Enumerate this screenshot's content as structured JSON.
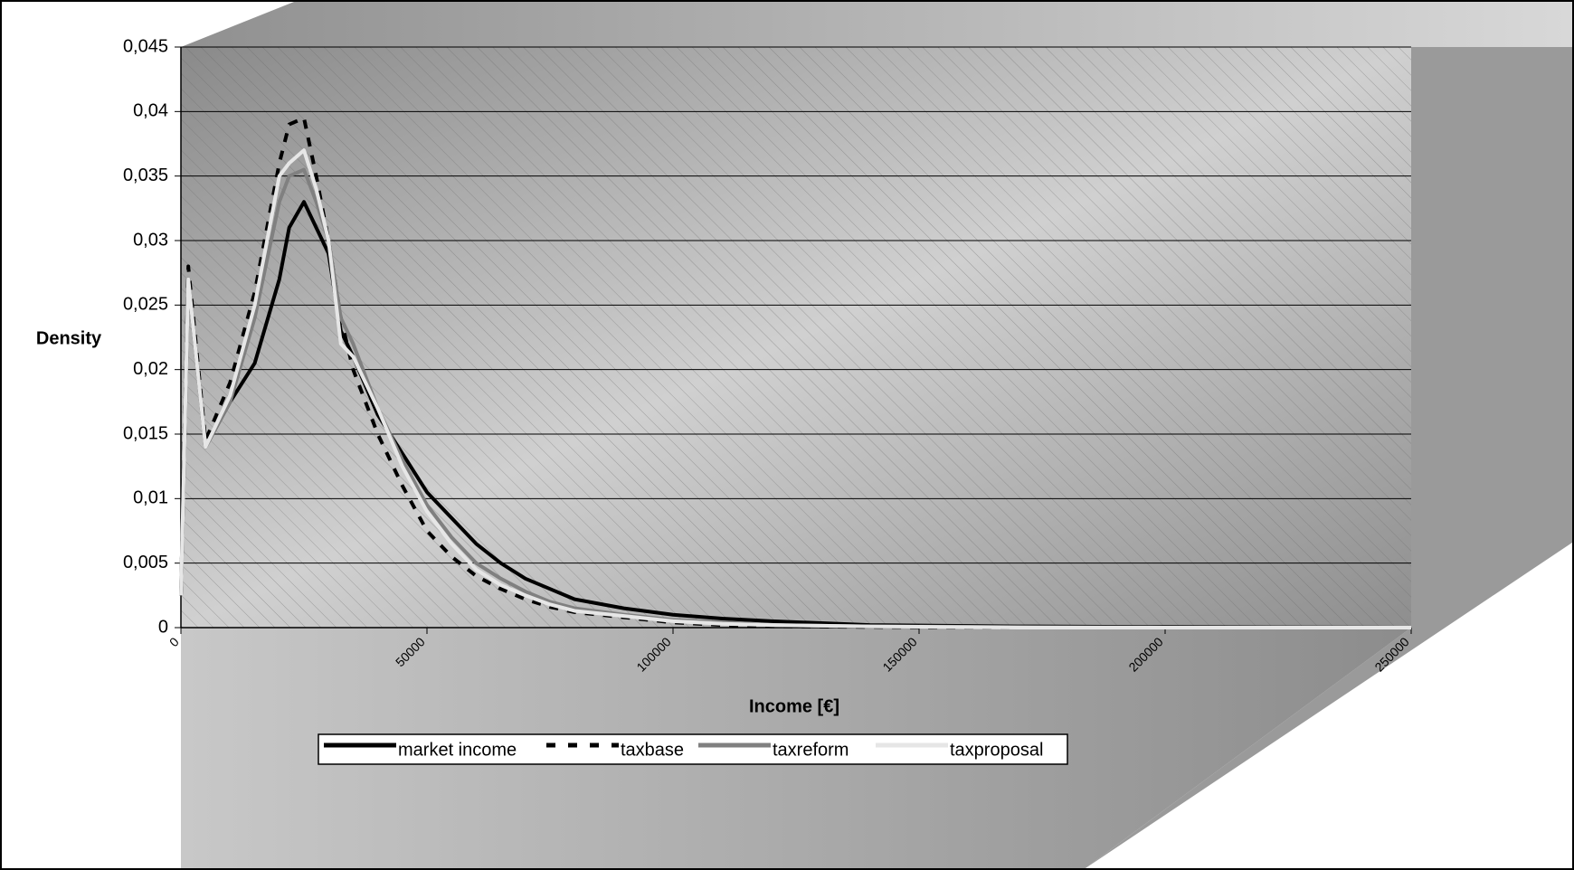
{
  "chart_data": {
    "type": "line",
    "y_label": "Density",
    "x_label": "Income [€]",
    "x": [
      0,
      1500,
      5000,
      10000,
      15000,
      20000,
      22000,
      25000,
      27500,
      30000,
      32500,
      35000,
      40000,
      45000,
      50000,
      55000,
      60000,
      65000,
      70000,
      75000,
      80000,
      90000,
      100000,
      110000,
      120000,
      140000,
      170000,
      200000,
      250000
    ],
    "series": [
      {
        "name": "market income",
        "color": "#000000",
        "dash": false,
        "values": [
          0.0025,
          0.027,
          0.014,
          0.0175,
          0.0205,
          0.027,
          0.031,
          0.033,
          0.031,
          0.029,
          0.023,
          0.021,
          0.0165,
          0.0135,
          0.0105,
          0.0085,
          0.0065,
          0.005,
          0.0038,
          0.003,
          0.0022,
          0.0015,
          0.001,
          0.0007,
          0.0005,
          0.0002,
          0.0001,
          5e-05,
          0
        ]
      },
      {
        "name": "taxbase",
        "color": "#000000",
        "dash": true,
        "values": [
          0.0025,
          0.028,
          0.0145,
          0.019,
          0.026,
          0.036,
          0.039,
          0.0395,
          0.035,
          0.03,
          0.024,
          0.02,
          0.015,
          0.011,
          0.0075,
          0.0055,
          0.004,
          0.003,
          0.0022,
          0.0016,
          0.0012,
          0.0008,
          0.0004,
          0.0002,
          0.0001,
          5e-05,
          0,
          0,
          0
        ]
      },
      {
        "name": "taxreform",
        "color": "#808080",
        "dash": false,
        "values": [
          0.0025,
          0.027,
          0.014,
          0.0175,
          0.024,
          0.033,
          0.035,
          0.0355,
          0.033,
          0.03,
          0.024,
          0.022,
          0.017,
          0.013,
          0.0095,
          0.007,
          0.005,
          0.0038,
          0.0028,
          0.002,
          0.0015,
          0.001,
          0.0006,
          0.0004,
          0.0002,
          0.0001,
          5e-05,
          0,
          0
        ]
      },
      {
        "name": "taxproposal",
        "color": "#e6e6e6",
        "dash": false,
        "values": [
          0.0025,
          0.027,
          0.014,
          0.018,
          0.025,
          0.035,
          0.036,
          0.037,
          0.034,
          0.03,
          0.022,
          0.021,
          0.017,
          0.0125,
          0.009,
          0.0065,
          0.0045,
          0.0033,
          0.0025,
          0.0018,
          0.0013,
          0.0009,
          0.0005,
          0.0003,
          0.0002,
          0.0001,
          0,
          0,
          0
        ]
      }
    ],
    "xlim": [
      0,
      250000
    ],
    "xticks": [
      0,
      50000,
      100000,
      150000,
      200000,
      250000
    ],
    "ylim": [
      0,
      0.045
    ],
    "yticks": [
      0,
      {
        "value": 0.005,
        "label": "0,005"
      },
      {
        "value": 0.01,
        "label": "0,01"
      },
      {
        "value": 0.015,
        "label": "0,015"
      },
      {
        "value": 0.02,
        "label": "0,02"
      },
      {
        "value": 0.025,
        "label": "0,025"
      },
      {
        "value": 0.03,
        "label": "0,03"
      },
      {
        "value": 0.035,
        "label": "0,035"
      },
      {
        "value": 0.04,
        "label": "0,04"
      },
      {
        "value": 0.045,
        "label": "0,045"
      }
    ],
    "grid": true,
    "legend": "bottom"
  }
}
